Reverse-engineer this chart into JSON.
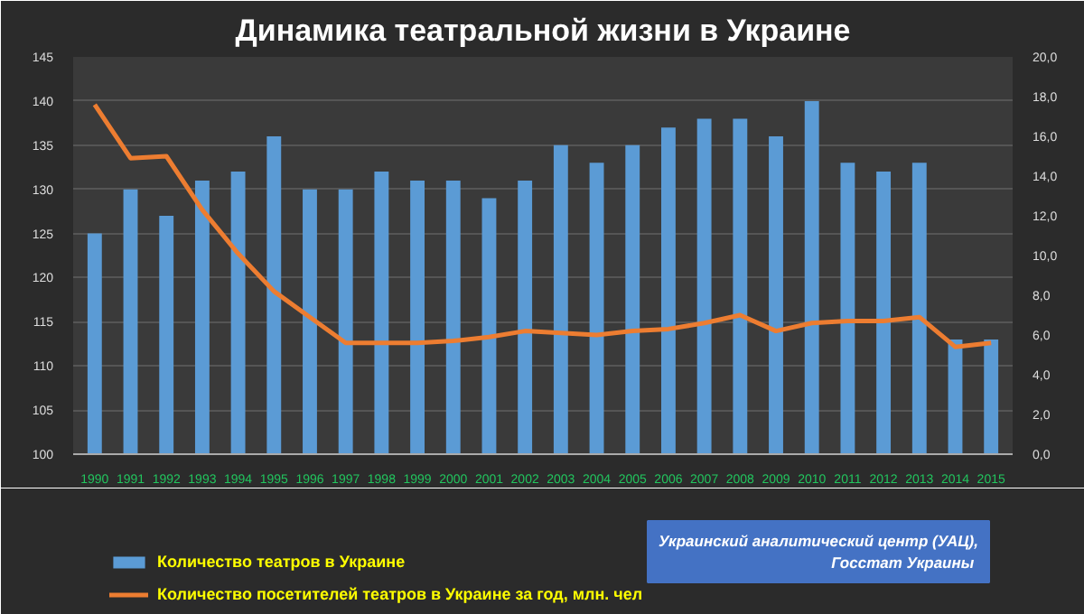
{
  "chart_data": {
    "type": "bar",
    "title": "Динамика театральной жизни в Украине",
    "categories": [
      "1990",
      "1991",
      "1992",
      "1993",
      "1994",
      "1995",
      "1996",
      "1997",
      "1998",
      "1999",
      "2000",
      "2001",
      "2002",
      "2003",
      "2004",
      "2005",
      "2006",
      "2007",
      "2008",
      "2009",
      "2010",
      "2011",
      "2012",
      "2013",
      "2014",
      "2015"
    ],
    "series": [
      {
        "name": "Количество театров в Украине",
        "color": "#5b9bd5",
        "values": [
          125,
          130,
          127,
          131,
          132,
          136,
          130,
          130,
          132,
          131,
          131,
          129,
          131,
          135,
          133,
          135,
          137,
          138,
          138,
          136,
          140,
          133,
          132,
          133,
          113,
          113
        ]
      },
      {
        "name": "Количество посетителей театров в Украине за год, млн. чел",
        "color": "#ed7d31",
        "type": "line",
        "axis": "y2",
        "values": [
          17.6,
          14.9,
          15.0,
          12.3,
          10.1,
          8.2,
          6.9,
          5.6,
          5.6,
          5.6,
          5.7,
          5.9,
          6.2,
          6.1,
          6.0,
          6.2,
          6.3,
          6.6,
          7.0,
          6.2,
          6.6,
          6.7,
          6.7,
          6.9,
          5.4,
          5.6
        ]
      }
    ],
    "ylim": [
      100,
      145
    ],
    "yticks": [
      100,
      105,
      110,
      115,
      120,
      125,
      130,
      135,
      140,
      145
    ],
    "y2lim": [
      0,
      20
    ],
    "y2ticks": [
      {
        "value": 0,
        "label": "0,0"
      },
      {
        "value": 2,
        "label": "2,0"
      },
      {
        "value": 4,
        "label": "4,0"
      },
      {
        "value": 6,
        "label": "6,0"
      },
      {
        "value": 8,
        "label": "8,0"
      },
      {
        "value": 10,
        "label": "10,0"
      },
      {
        "value": 12,
        "label": "12,0"
      },
      {
        "value": 14,
        "label": "14,0"
      },
      {
        "value": 16,
        "label": "16,0"
      },
      {
        "value": 18,
        "label": "18,0"
      },
      {
        "value": 20,
        "label": "20,0"
      }
    ],
    "grid": "y",
    "legend": "bottom",
    "marker": "none",
    "line_style": "solid",
    "annotations": [
      "Украинский аналитический центр (УАЦ), Госстат  Украины"
    ]
  }
}
